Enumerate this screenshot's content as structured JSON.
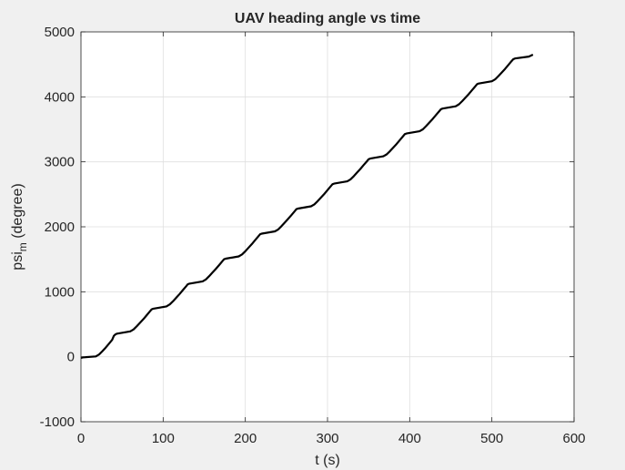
{
  "colors": {
    "figure_bg": "#f0f0f0",
    "axes_bg": "#ffffff",
    "grid": "#dfdfdf",
    "axis_line": "#262626",
    "series_line": "#000000"
  },
  "chart_data": {
    "type": "line",
    "title": "UAV heading angle vs time",
    "xlabel": "t (s)",
    "ylabel_main": "psi",
    "ylabel_sub": "m",
    "ylabel_rest": " (degree)",
    "xlim": [
      0,
      600
    ],
    "ylim": [
      -1000,
      5000
    ],
    "xticks": [
      0,
      100,
      200,
      300,
      400,
      500,
      600
    ],
    "yticks": [
      -1000,
      0,
      1000,
      2000,
      3000,
      4000,
      5000
    ],
    "xtick_labels": [
      "0",
      "100",
      "200",
      "300",
      "400",
      "500",
      "600"
    ],
    "ytick_labels": [
      "-1000",
      "0",
      "1000",
      "2000",
      "3000",
      "4000",
      "5000"
    ],
    "grid": true,
    "legend": "none",
    "series": [
      {
        "x": [
          0,
          2,
          18,
          22,
          26,
          30,
          34,
          38,
          40,
          42,
          44,
          60,
          64,
          68,
          72,
          76,
          80,
          84,
          86,
          88,
          104,
          108,
          112,
          116,
          120,
          124,
          128,
          130,
          132,
          148,
          152,
          156,
          160,
          164,
          168,
          172,
          174,
          176,
          192,
          196,
          200,
          204,
          208,
          212,
          216,
          218,
          220,
          236,
          240,
          244,
          248,
          252,
          256,
          260,
          262,
          264,
          280,
          284,
          288,
          292,
          296,
          300,
          304,
          306,
          308,
          324,
          328,
          332,
          336,
          340,
          344,
          348,
          350,
          352,
          368,
          372,
          376,
          380,
          384,
          388,
          392,
          394,
          396,
          412,
          416,
          420,
          424,
          428,
          432,
          436,
          438,
          440,
          456,
          460,
          464,
          468,
          472,
          476,
          480,
          482,
          484,
          500,
          504,
          508,
          512,
          516,
          520,
          524,
          526,
          528,
          545,
          550
        ],
        "y": [
          -20,
          -10,
          5,
          35,
          85,
          140,
          200,
          260,
          320,
          345,
          355,
          390,
          420,
          470,
          525,
          580,
          640,
          700,
          730,
          740,
          775,
          805,
          855,
          910,
          965,
          1025,
          1085,
          1115,
          1125,
          1160,
          1190,
          1240,
          1295,
          1350,
          1410,
          1470,
          1500,
          1510,
          1545,
          1575,
          1625,
          1680,
          1735,
          1795,
          1855,
          1885,
          1895,
          1930,
          1960,
          2010,
          2065,
          2120,
          2180,
          2240,
          2270,
          2280,
          2315,
          2345,
          2395,
          2450,
          2505,
          2565,
          2625,
          2655,
          2665,
          2700,
          2730,
          2780,
          2835,
          2890,
          2950,
          3010,
          3040,
          3050,
          3085,
          3115,
          3165,
          3220,
          3275,
          3335,
          3395,
          3425,
          3435,
          3470,
          3500,
          3550,
          3605,
          3660,
          3720,
          3780,
          3810,
          3820,
          3855,
          3885,
          3935,
          3990,
          4045,
          4105,
          4165,
          4195,
          4205,
          4240,
          4270,
          4320,
          4375,
          4430,
          4490,
          4550,
          4580,
          4590,
          4620,
          4650
        ]
      }
    ]
  }
}
